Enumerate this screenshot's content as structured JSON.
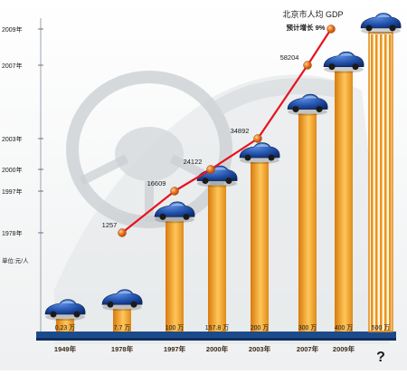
{
  "chart_data": [
    {
      "type": "bar",
      "categories": [
        "1949年",
        "1978年",
        "1997年",
        "2000年",
        "2003年",
        "2007年",
        "2009年",
        "?"
      ],
      "value_labels": [
        "0.23 万",
        "7.7 万",
        "100 万",
        "157.8 万",
        "200 万",
        "300 万",
        "400 万",
        "500 万"
      ],
      "values": [
        0.23,
        7.7,
        100,
        157.8,
        200,
        300,
        400,
        500
      ],
      "colors": {
        "bar_dark": "#d87a0c",
        "bar_light": "#ffd37a",
        "axis": "#1c4b8c",
        "year_label": "#3b2a1a"
      }
    },
    {
      "type": "line",
      "title": "北京市人均 GDP",
      "annotation": "预计增长 9%",
      "ylabel": "单位:元/人",
      "y_axis_labels": [
        {
          "label": "2009年",
          "value": 65000
        },
        {
          "label": "2007年",
          "value": 58204
        },
        {
          "label": "2003年",
          "value": 34892
        },
        {
          "label": "2000年",
          "value": 24122
        },
        {
          "label": "1997年",
          "value": 16609
        },
        {
          "label": "1978年",
          "value": 1257
        }
      ],
      "points": [
        {
          "value": 1257,
          "label": "1257"
        },
        {
          "value": 16609,
          "label": "16609"
        },
        {
          "value": 24122,
          "label": "24122"
        },
        {
          "value": 34892,
          "label": "34892"
        },
        {
          "value": 58204,
          "label": "58204"
        },
        {
          "value": null,
          "label": ""
        }
      ],
      "colors": {
        "line": "#e8121e",
        "marker": "#e36d12"
      }
    }
  ]
}
